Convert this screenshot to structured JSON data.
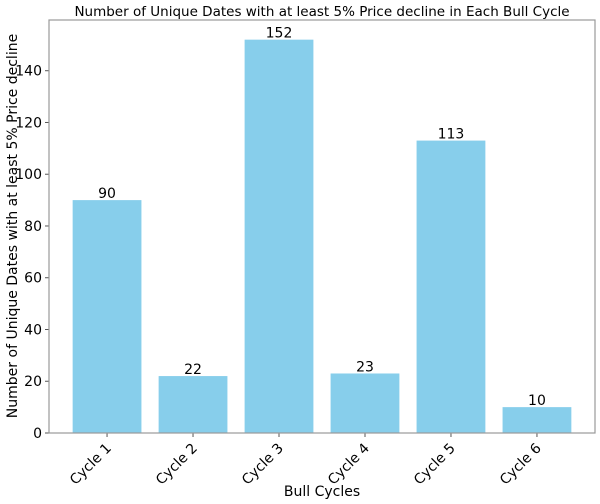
{
  "chart_data": {
    "type": "bar",
    "title": "Number of Unique Dates with at least 5% Price decline in Each Bull Cycle",
    "xlabel": "Bull Cycles",
    "ylabel": "Number of Unique Dates with at least 5% Price decline",
    "categories": [
      "Cycle 1",
      "Cycle 2",
      "Cycle 3",
      "Cycle 4",
      "Cycle 5",
      "Cycle 6"
    ],
    "values": [
      90,
      22,
      152,
      23,
      113,
      10
    ],
    "data_labels": [
      "90",
      "22",
      "152",
      "23",
      "113",
      "10"
    ],
    "ylim": [
      0,
      159.6
    ],
    "yticks": [
      0,
      20,
      40,
      60,
      80,
      100,
      120,
      140
    ],
    "grid": false,
    "bar_color": "#87CEEB",
    "xtick_rotation": 45
  }
}
